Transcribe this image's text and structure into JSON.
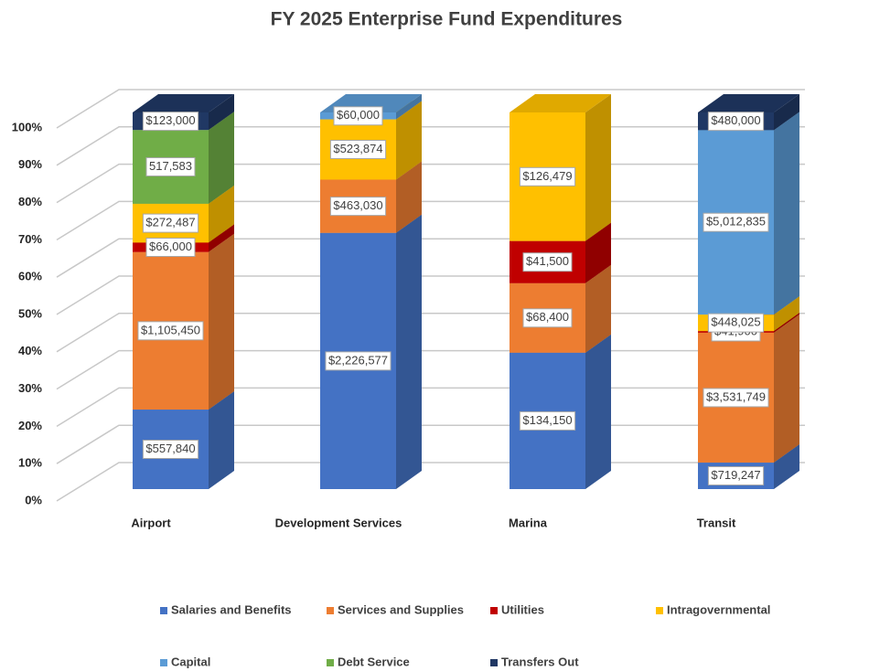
{
  "chart_data": {
    "type": "bar",
    "stack": "percent",
    "title": "FY 2025 Enterprise Fund Expenditures",
    "categories": [
      "Airport",
      "Development Services",
      "Marina",
      "Transit"
    ],
    "series": [
      {
        "name": "Salaries and Benefits",
        "color": "#4472c4",
        "values": [
          557840,
          2226577,
          134150,
          719247
        ],
        "value_labels": [
          "$557,840",
          "$2,226,577",
          "$134,150",
          "$719,247"
        ]
      },
      {
        "name": "Services and Supplies",
        "color": "#ed7d31",
        "values": [
          1105450,
          463030,
          68400,
          3531749
        ],
        "value_labels": [
          "$1,105,450",
          "$463,030",
          "$68,400",
          "$3,531,749"
        ]
      },
      {
        "name": "Utilities",
        "color": "#c00000",
        "values": [
          66000,
          null,
          41500,
          41900
        ],
        "value_labels": [
          "$66,000",
          null,
          "$41,500",
          "$41,900"
        ]
      },
      {
        "name": "Intragovernmental",
        "color": "#ffc000",
        "values": [
          272487,
          523874,
          126479,
          448025
        ],
        "value_labels": [
          "$272,487",
          "$523,874",
          "$126,479",
          "$448,025"
        ]
      },
      {
        "name": "Capital",
        "color": "#5b9bd5",
        "values": [
          null,
          60000,
          null,
          5012835
        ],
        "value_labels": [
          null,
          "$60,000",
          null,
          "$5,012,835"
        ]
      },
      {
        "name": "Debt Service",
        "color": "#70ad47",
        "values": [
          517583,
          null,
          null,
          null
        ],
        "value_labels": [
          "517,583",
          null,
          null,
          null
        ]
      },
      {
        "name": "Transfers Out",
        "color": "#203864",
        "values": [
          123000,
          null,
          null,
          480000
        ],
        "value_labels": [
          "$123,000",
          null,
          null,
          "$480,000"
        ]
      }
    ],
    "ylim": [
      0,
      100
    ],
    "yticks": [
      {
        "value": 0,
        "label": "0%"
      },
      {
        "value": 10,
        "label": "10%"
      },
      {
        "value": 20,
        "label": "20%"
      },
      {
        "value": 30,
        "label": "30%"
      },
      {
        "value": 40,
        "label": "40%"
      },
      {
        "value": 50,
        "label": "50%"
      },
      {
        "value": 60,
        "label": "60%"
      },
      {
        "value": 70,
        "label": "70%"
      },
      {
        "value": 80,
        "label": "80%"
      },
      {
        "value": 90,
        "label": "90%"
      },
      {
        "value": 100,
        "label": "100%"
      }
    ],
    "grid": true,
    "legend": "bottom"
  }
}
